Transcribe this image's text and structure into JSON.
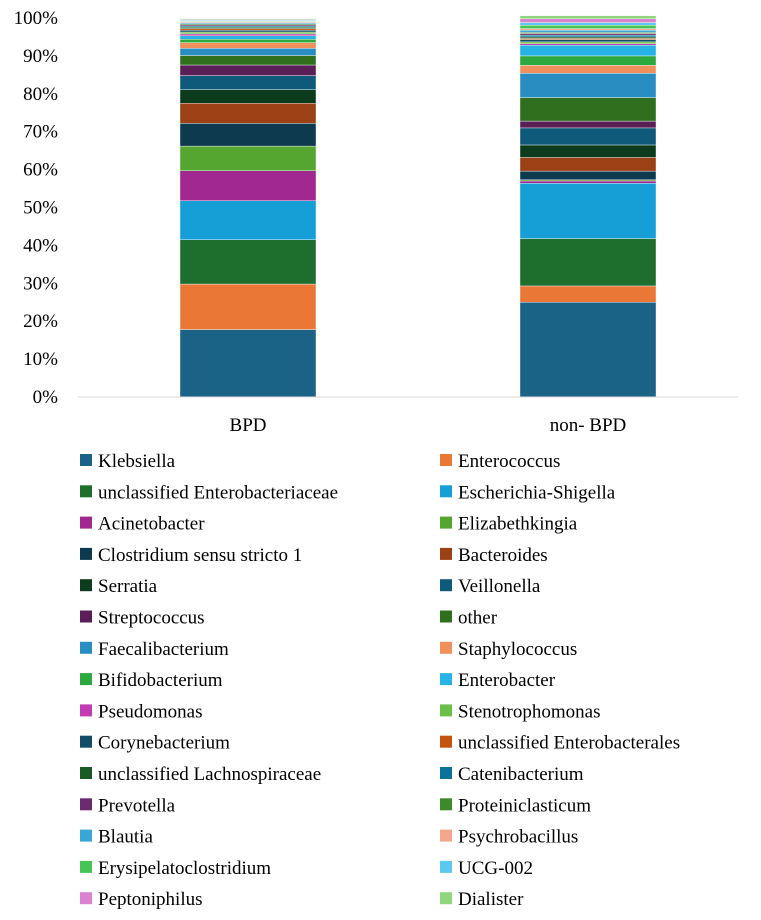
{
  "chart_data": {
    "type": "bar",
    "stacked": true,
    "title": "",
    "xlabel": "",
    "ylabel": "",
    "ylim": [
      0,
      100
    ],
    "yticks": [
      "0%",
      "10%",
      "20%",
      "30%",
      "40%",
      "50%",
      "60%",
      "70%",
      "80%",
      "90%",
      "100%"
    ],
    "categories": [
      "BPD",
      "non- BPD"
    ],
    "legend_position": "bottom",
    "series": [
      {
        "name": "Klebsiella",
        "color": "#1a6286",
        "values": [
          17.8,
          25.0
        ]
      },
      {
        "name": "Enterococcus",
        "color": "#ea7735",
        "values": [
          12.0,
          4.3
        ]
      },
      {
        "name": "unclassified Enterobacteriaceae",
        "color": "#1e6e2e",
        "values": [
          11.7,
          12.5
        ]
      },
      {
        "name": "Escherichia-Shigella",
        "color": "#159fd6",
        "values": [
          10.3,
          14.6
        ]
      },
      {
        "name": "Acinetobacter",
        "color": "#a1288f",
        "values": [
          7.9,
          0.6
        ]
      },
      {
        "name": "Elizabethkingia",
        "color": "#55a630",
        "values": [
          6.5,
          0.3
        ]
      },
      {
        "name": "Clostridium sensu stricto 1",
        "color": "#0d3a4f",
        "values": [
          6.0,
          2.3
        ]
      },
      {
        "name": "Bacteroides",
        "color": "#9c4016",
        "values": [
          5.3,
          3.6
        ]
      },
      {
        "name": "Serratia",
        "color": "#0d3b1e",
        "values": [
          3.6,
          3.3
        ]
      },
      {
        "name": "Veillonella",
        "color": "#0f5a7a",
        "values": [
          3.7,
          4.5
        ]
      },
      {
        "name": "Streptococcus",
        "color": "#5a1f57",
        "values": [
          2.8,
          1.8
        ]
      },
      {
        "name": "other",
        "color": "#2f6f1e",
        "values": [
          2.5,
          6.2
        ]
      },
      {
        "name": "Faecalibacterium",
        "color": "#2a8dc2",
        "values": [
          1.9,
          6.4
        ]
      },
      {
        "name": "Staphylococcus",
        "color": "#f0915d",
        "values": [
          1.5,
          2.1
        ]
      },
      {
        "name": "Bifidobacterium",
        "color": "#2ca83f",
        "values": [
          0.9,
          2.5
        ]
      },
      {
        "name": "Enterobacter",
        "color": "#26b3e6",
        "values": [
          0.9,
          2.8
        ]
      },
      {
        "name": "Pseudomonas",
        "color": "#c13cb2",
        "values": [
          0.5,
          0.4
        ]
      },
      {
        "name": "Stenotrophomonas",
        "color": "#6cc04a",
        "values": [
          0.5,
          0.5
        ]
      },
      {
        "name": "Corynebacterium",
        "color": "#124d68",
        "values": [
          0.5,
          0.6
        ]
      },
      {
        "name": "unclassified Enterobacterales",
        "color": "#c45312",
        "values": [
          0.4,
          0.3
        ]
      },
      {
        "name": "unclassified Lachnospiraceae",
        "color": "#1a5a26",
        "values": [
          0.4,
          0.4
        ]
      },
      {
        "name": "Catenibacterium",
        "color": "#0a7299",
        "values": [
          0.3,
          0.5
        ]
      },
      {
        "name": "Prevotella",
        "color": "#6a2a6e",
        "values": [
          0.3,
          0.4
        ]
      },
      {
        "name": "Proteiniclasticum",
        "color": "#3d8a2a",
        "values": [
          0.3,
          0.3
        ]
      },
      {
        "name": "Blautia",
        "color": "#3aa6d6",
        "values": [
          0.3,
          0.6
        ]
      },
      {
        "name": "Psychrobacillus",
        "color": "#f3a68b",
        "values": [
          0.2,
          0.4
        ]
      },
      {
        "name": "Erysipelatoclostridium",
        "color": "#46c456",
        "values": [
          0.2,
          0.9
        ]
      },
      {
        "name": "UCG-002",
        "color": "#5cc8ef",
        "values": [
          0.2,
          0.7
        ]
      },
      {
        "name": "Peptoniphilus",
        "color": "#d982cf",
        "values": [
          0.2,
          1.0
        ]
      },
      {
        "name": "Dialister",
        "color": "#8fd67c",
        "values": [
          0.2,
          0.8
        ]
      }
    ]
  }
}
